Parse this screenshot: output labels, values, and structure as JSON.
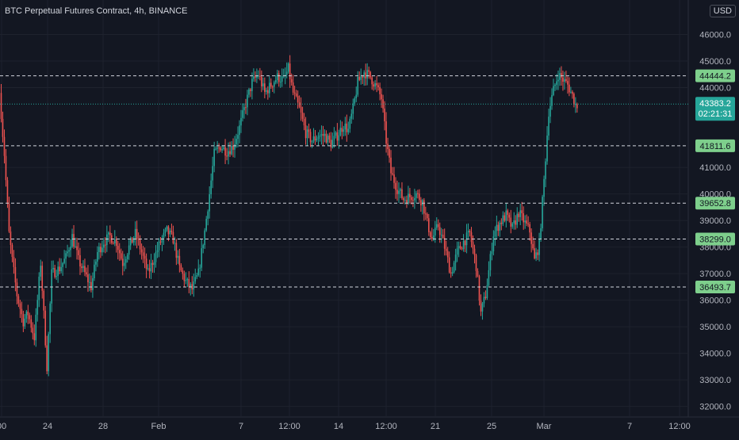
{
  "chart_data": {
    "type": "candlestick",
    "title": "BTC Perpetual Futures Contract, 4h, BINANCE",
    "currency": "USD",
    "ylim": [
      31600,
      47300
    ],
    "y_ticks": [
      {
        "value": 46000,
        "label": "46000.0"
      },
      {
        "value": 45000,
        "label": "45000.0"
      },
      {
        "value": 44000,
        "label": "44000.0"
      },
      {
        "value": 41000,
        "label": "41000.0"
      },
      {
        "value": 40000,
        "label": "40000.0"
      },
      {
        "value": 39000,
        "label": "39000.0"
      },
      {
        "value": 38000,
        "label": "38000.0"
      },
      {
        "value": 37000,
        "label": "37000.0"
      },
      {
        "value": 36000,
        "label": "36000.0"
      },
      {
        "value": 35000,
        "label": "35000.0"
      },
      {
        "value": 34000,
        "label": "34000.0"
      },
      {
        "value": 33000,
        "label": "33000.0"
      },
      {
        "value": 32000,
        "label": "32000.0"
      }
    ],
    "x_ticks": [
      "00",
      "24",
      "28",
      "Feb",
      "7",
      "12:00",
      "14",
      "12:00",
      "21",
      "25",
      "Mar",
      "7",
      "12:00"
    ],
    "levels": [
      {
        "value": 44444.2,
        "label": "44444.2"
      },
      {
        "value": 41811.6,
        "label": "41811.6"
      },
      {
        "value": 39652.8,
        "label": "39652.8"
      },
      {
        "value": 38299.0,
        "label": "38299.0"
      },
      {
        "value": 36493.7,
        "label": "36493.7"
      }
    ],
    "last_price": {
      "value": 43383.2,
      "label": "43383.2",
      "countdown": "02:21:31"
    },
    "anchors": [
      [
        0,
        43800
      ],
      [
        3,
        41500
      ],
      [
        6,
        38500
      ],
      [
        8,
        37500
      ],
      [
        11,
        36200
      ],
      [
        15,
        35200
      ],
      [
        18,
        35500
      ],
      [
        22,
        34600
      ],
      [
        26,
        37400
      ],
      [
        30,
        33500
      ],
      [
        33,
        37000
      ],
      [
        38,
        37200
      ],
      [
        42,
        37600
      ],
      [
        46,
        38400
      ],
      [
        50,
        37500
      ],
      [
        54,
        37000
      ],
      [
        58,
        36500
      ],
      [
        62,
        37800
      ],
      [
        66,
        38200
      ],
      [
        70,
        38400
      ],
      [
        74,
        38200
      ],
      [
        78,
        37400
      ],
      [
        82,
        38000
      ],
      [
        86,
        38500
      ],
      [
        90,
        37800
      ],
      [
        94,
        37000
      ],
      [
        98,
        37600
      ],
      [
        102,
        38200
      ],
      [
        106,
        38600
      ],
      [
        110,
        38300
      ],
      [
        114,
        37200
      ],
      [
        118,
        36700
      ],
      [
        122,
        36400
      ],
      [
        126,
        37000
      ],
      [
        130,
        38600
      ],
      [
        133,
        40000
      ],
      [
        136,
        41500
      ],
      [
        140,
        41800
      ],
      [
        144,
        41600
      ],
      [
        148,
        41800
      ],
      [
        152,
        42500
      ],
      [
        156,
        43400
      ],
      [
        160,
        44200
      ],
      [
        164,
        44500
      ],
      [
        168,
        43800
      ],
      [
        172,
        44100
      ],
      [
        176,
        44400
      ],
      [
        180,
        44300
      ],
      [
        183,
        44700
      ],
      [
        186,
        43800
      ],
      [
        190,
        43200
      ],
      [
        194,
        42300
      ],
      [
        198,
        42000
      ],
      [
        202,
        42200
      ],
      [
        206,
        42200
      ],
      [
        210,
        41900
      ],
      [
        214,
        42200
      ],
      [
        218,
        42600
      ],
      [
        221,
        42400
      ],
      [
        224,
        43200
      ],
      [
        227,
        44200
      ],
      [
        231,
        44600
      ],
      [
        235,
        44400
      ],
      [
        239,
        44000
      ],
      [
        242,
        43600
      ],
      [
        245,
        42000
      ],
      [
        248,
        40800
      ],
      [
        252,
        40200
      ],
      [
        256,
        39800
      ],
      [
        260,
        39900
      ],
      [
        264,
        40000
      ],
      [
        268,
        39700
      ],
      [
        271,
        38900
      ],
      [
        274,
        38300
      ],
      [
        278,
        38800
      ],
      [
        282,
        38000
      ],
      [
        286,
        37000
      ],
      [
        290,
        37800
      ],
      [
        294,
        38200
      ],
      [
        298,
        38500
      ],
      [
        302,
        37300
      ],
      [
        305,
        35500
      ],
      [
        308,
        36200
      ],
      [
        310,
        37100
      ],
      [
        313,
        38500
      ],
      [
        317,
        38900
      ],
      [
        321,
        39200
      ],
      [
        325,
        38700
      ],
      [
        329,
        39300
      ],
      [
        333,
        38900
      ],
      [
        336,
        38600
      ],
      [
        339,
        37500
      ],
      [
        342,
        38100
      ],
      [
        345,
        40500
      ],
      [
        348,
        43100
      ],
      [
        351,
        43900
      ],
      [
        354,
        44500
      ],
      [
        357,
        44300
      ],
      [
        360,
        44100
      ],
      [
        363,
        43700
      ],
      [
        365,
        43350
      ]
    ],
    "legend": "none",
    "grid": true
  }
}
